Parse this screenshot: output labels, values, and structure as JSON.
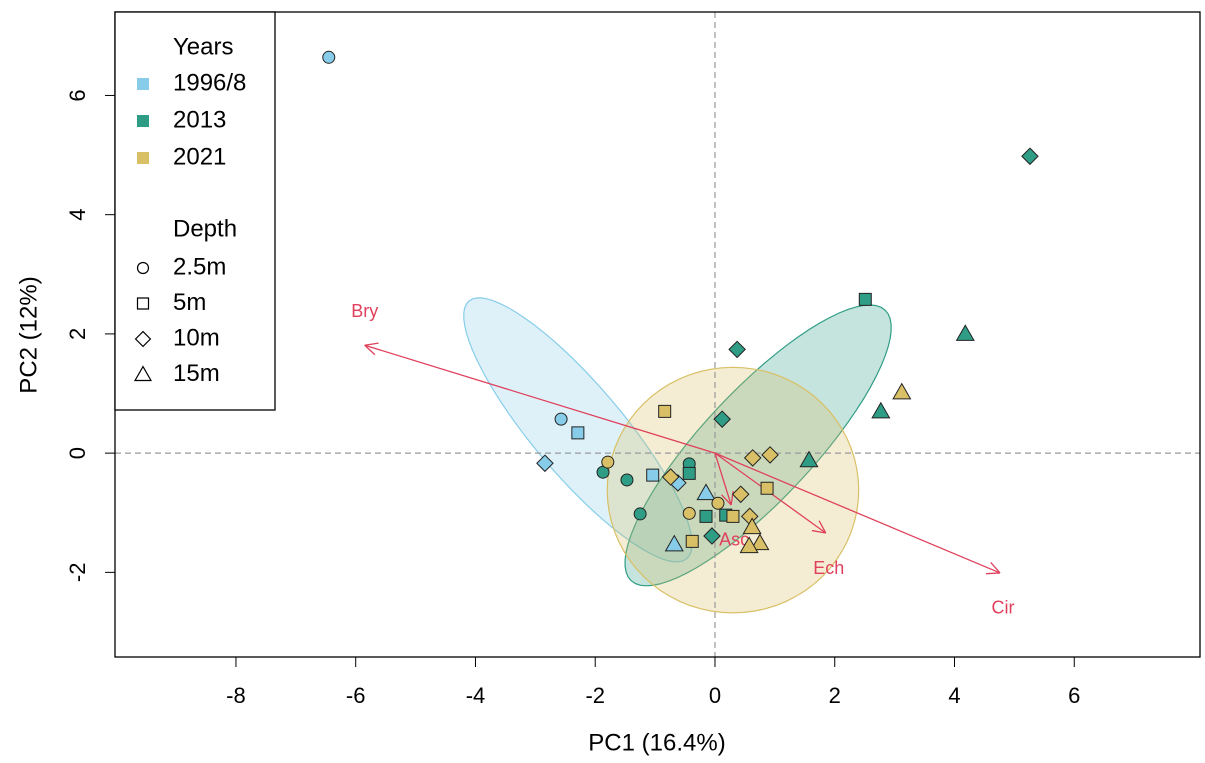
{
  "chart_data": {
    "type": "biplot",
    "xlabel": "PC1 (16.4%)",
    "ylabel": "PC2 (12%)",
    "xlim": [
      -10.02,
      8.1
    ],
    "ylim": [
      -3.42,
      7.4
    ],
    "xticks": [
      -8,
      -6,
      -4,
      -2,
      0,
      2,
      4,
      6
    ],
    "yticks": [
      -2,
      0,
      2,
      4,
      6
    ],
    "legend_title": "Years",
    "depth_title": "Depth",
    "depth_levels": [
      "2.5m",
      "5m",
      "10m",
      "15m"
    ],
    "series": [
      {
        "name": "1996/8",
        "color": "#87cdea",
        "x": [
          -6.45,
          -2.57,
          -2.29,
          -2.84,
          -1.04,
          -0.62,
          -0.15,
          -0.68
        ],
        "y": [
          6.64,
          0.57,
          0.34,
          -0.17,
          -0.37,
          -0.5,
          -0.67,
          -1.53
        ],
        "depth": [
          "2.5m",
          "2.5m",
          "5m",
          "10m",
          "5m",
          "10m",
          "15m",
          "15m"
        ]
      },
      {
        "name": "2013",
        "color": "#2f9d86",
        "x": [
          5.26,
          2.51,
          4.18,
          2.77,
          0.37,
          0.12,
          -1.87,
          -1.47,
          -0.43,
          -0.43,
          1.57,
          -0.15,
          0.18,
          -1.25,
          -0.05
        ],
        "y": [
          4.98,
          2.58,
          2.0,
          0.7,
          1.74,
          0.57,
          -0.32,
          -0.45,
          -0.18,
          -0.34,
          -0.12,
          -1.06,
          -1.04,
          -1.02,
          -1.39
        ],
        "depth": [
          "10m",
          "5m",
          "15m",
          "15m",
          "10m",
          "10m",
          "2.5m",
          "2.5m",
          "2.5m",
          "5m",
          "15m",
          "5m",
          "5m",
          "2.5m",
          "10m"
        ]
      },
      {
        "name": "2021",
        "color": "#d9c066",
        "x": [
          3.12,
          -0.84,
          -1.79,
          -0.74,
          0.63,
          0.92,
          0.87,
          0.43,
          0.05,
          0.3,
          0.58,
          -0.43,
          0.62,
          -0.38,
          0.75,
          0.57
        ],
        "y": [
          1.02,
          0.7,
          -0.15,
          -0.4,
          -0.08,
          -0.03,
          -0.59,
          -0.69,
          -0.84,
          -1.06,
          -1.06,
          -1.01,
          -1.24,
          -1.48,
          -1.51,
          -1.56
        ],
        "depth": [
          "15m",
          "5m",
          "2.5m",
          "10m",
          "10m",
          "10m",
          "5m",
          "10m",
          "2.5m",
          "5m",
          "10m",
          "2.5m",
          "15m",
          "5m",
          "15m",
          "15m"
        ]
      }
    ],
    "ellipses": [
      {
        "cx": -2.29,
        "cy": 0.39,
        "u": [
          1.82,
          -2.16
        ],
        "v": [
          0.57,
          0.49
        ]
      },
      {
        "cx": 0.72,
        "cy": 0.13,
        "u": [
          2.12,
          2.27
        ],
        "v": [
          0.67,
          -0.63
        ]
      },
      {
        "cx": 0.3,
        "cy": -0.62,
        "u": [
          2.1,
          0
        ],
        "v": [
          0,
          2.06
        ]
      }
    ],
    "arrow_color": "#e0405c",
    "arrows": [
      {
        "name": "Bry",
        "x": -5.85,
        "y": 1.81
      },
      {
        "name": "Cir",
        "x": 4.76,
        "y": -2.01
      },
      {
        "name": "Ech",
        "x": 1.85,
        "y": -1.34
      },
      {
        "name": "Asc",
        "x": 0.27,
        "y": -0.87
      }
    ]
  }
}
